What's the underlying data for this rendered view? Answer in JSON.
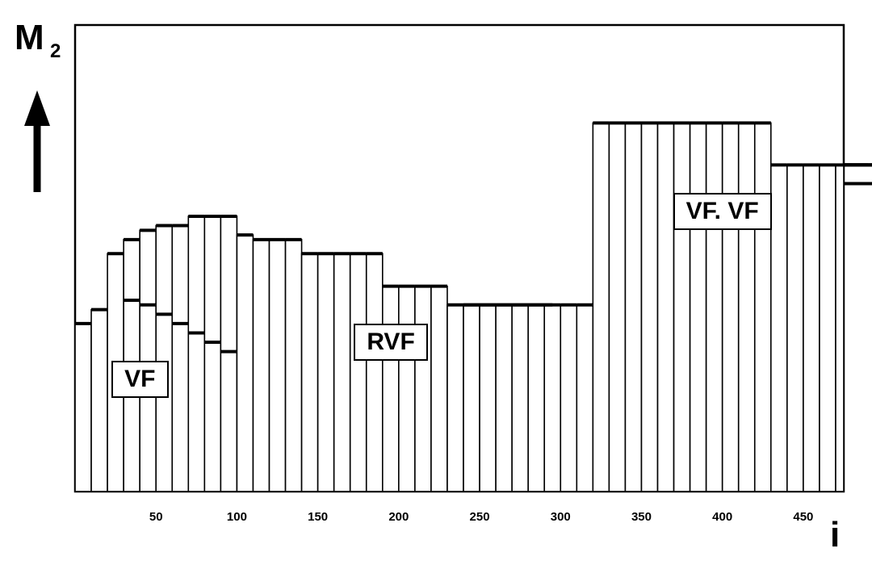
{
  "y_axis_label": "M",
  "y_axis_subscript": "2",
  "x_axis_label": "i",
  "chart_data": {
    "type": "bar",
    "xlabel": "i",
    "ylabel": "M2",
    "xlim": [
      0,
      475
    ],
    "ylim": [
      0,
      100
    ],
    "xticks": [
      "50",
      "100",
      "150",
      "200",
      "250",
      "300",
      "350",
      "400",
      "450"
    ],
    "bin_width": 10,
    "series": [
      {
        "values": [
          36,
          39,
          51,
          54,
          56,
          57,
          57,
          59,
          59,
          59,
          55,
          54,
          54,
          54,
          51,
          51,
          51,
          51,
          51,
          44,
          44,
          44,
          44,
          40,
          40,
          40,
          40,
          40,
          40,
          40,
          40,
          40,
          79,
          79,
          79,
          79,
          79,
          79,
          79,
          79,
          79,
          79,
          79,
          70,
          70,
          70,
          70,
          70,
          70,
          70,
          70,
          70,
          70,
          70,
          70,
          66,
          66,
          66
        ]
      },
      {
        "values": [
          null,
          null,
          null,
          41,
          40,
          38,
          36,
          34,
          32,
          30
        ]
      }
    ],
    "annotations": [
      {
        "text": "VF",
        "x": 40,
        "y": 24
      },
      {
        "text": "RVF",
        "x": 195,
        "y": 32
      },
      {
        "text": "VF. VF",
        "x": 400,
        "y": 60
      }
    ]
  }
}
